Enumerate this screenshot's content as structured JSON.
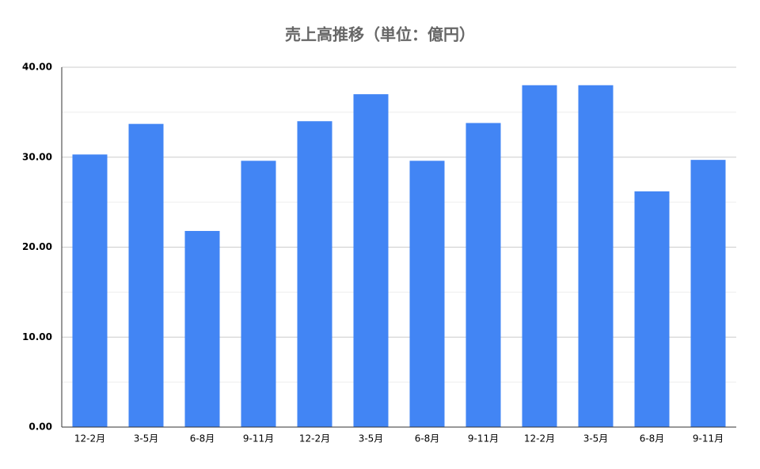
{
  "chart_data": {
    "type": "bar",
    "title": "売上高推移（単位：億円）",
    "categories": [
      "12-2月",
      "3-5月",
      "6-8月",
      "9-11月",
      "12-2月",
      "3-5月",
      "6-8月",
      "9-11月",
      "12-2月",
      "3-5月",
      "6-8月",
      "9-11月"
    ],
    "values": [
      30.3,
      33.7,
      21.8,
      29.6,
      34.0,
      37.0,
      29.6,
      33.8,
      38.0,
      38.0,
      26.2,
      29.7
    ],
    "color": "#4285f4",
    "ylim": [
      0,
      40
    ],
    "yticks": [
      {
        "value": 0,
        "label": "0.00"
      },
      {
        "value": 10,
        "label": "10.00"
      },
      {
        "value": 20,
        "label": "20.00"
      },
      {
        "value": 30,
        "label": "30.00"
      },
      {
        "value": 40,
        "label": "40.00"
      }
    ],
    "yminorticks": [
      5,
      15,
      25,
      35
    ],
    "grid": true
  }
}
